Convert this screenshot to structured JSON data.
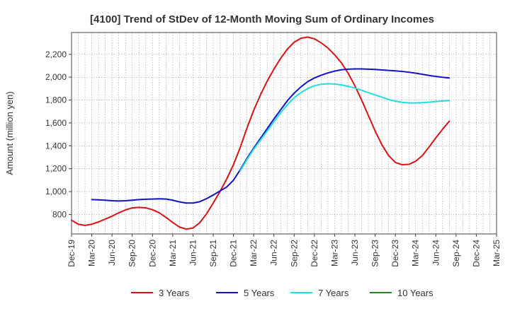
{
  "chart_data": {
    "type": "line",
    "title": "[4100]  Trend of StDev of 12-Month Moving Sum of Ordinary Incomes",
    "xlabel": "",
    "ylabel": "Amount (million yen)",
    "ylim": [
      630,
      2390
    ],
    "yticks": [
      800,
      1000,
      1200,
      1400,
      1600,
      1800,
      2000,
      2200
    ],
    "ytick_labels": [
      "800",
      "1,000",
      "1,200",
      "1,400",
      "1,600",
      "1,800",
      "2,000",
      "2,200"
    ],
    "x_tick_labels": [
      "Dec-19",
      "Mar-20",
      "Jun-20",
      "Sep-20",
      "Dec-20",
      "Mar-21",
      "Jun-21",
      "Sep-21",
      "Dec-21",
      "Mar-22",
      "Jun-22",
      "Sep-22",
      "Dec-22",
      "Mar-23",
      "Jun-23",
      "Sep-23",
      "Dec-23",
      "Mar-24",
      "Jun-24",
      "Sep-24",
      "Dec-24",
      "Mar-25"
    ],
    "grid": true,
    "legend_position": "bottom",
    "series": [
      {
        "name": "3 Years",
        "color": "#dd1111",
        "points": [
          [
            0,
            750
          ],
          [
            1,
            715
          ],
          [
            2,
            705
          ],
          [
            3,
            715
          ],
          [
            4,
            735
          ],
          [
            5,
            760
          ],
          [
            6,
            785
          ],
          [
            7,
            815
          ],
          [
            8,
            840
          ],
          [
            9,
            858
          ],
          [
            10,
            862
          ],
          [
            11,
            858
          ],
          [
            12,
            842
          ],
          [
            13,
            815
          ],
          [
            14,
            775
          ],
          [
            15,
            730
          ],
          [
            16,
            690
          ],
          [
            17,
            672
          ],
          [
            18,
            682
          ],
          [
            19,
            728
          ],
          [
            20,
            805
          ],
          [
            21,
            900
          ],
          [
            22,
            1000
          ],
          [
            23,
            1110
          ],
          [
            24,
            1235
          ],
          [
            25,
            1385
          ],
          [
            26,
            1555
          ],
          [
            27,
            1710
          ],
          [
            28,
            1845
          ],
          [
            29,
            1965
          ],
          [
            30,
            2070
          ],
          [
            31,
            2165
          ],
          [
            32,
            2245
          ],
          [
            33,
            2305
          ],
          [
            34,
            2340
          ],
          [
            35,
            2350
          ],
          [
            36,
            2335
          ],
          [
            37,
            2300
          ],
          [
            38,
            2255
          ],
          [
            39,
            2195
          ],
          [
            40,
            2125
          ],
          [
            41,
            2035
          ],
          [
            42,
            1925
          ],
          [
            43,
            1800
          ],
          [
            44,
            1665
          ],
          [
            45,
            1530
          ],
          [
            46,
            1410
          ],
          [
            47,
            1315
          ],
          [
            48,
            1255
          ],
          [
            49,
            1235
          ],
          [
            50,
            1238
          ],
          [
            51,
            1265
          ],
          [
            52,
            1315
          ],
          [
            53,
            1390
          ],
          [
            54,
            1470
          ],
          [
            55,
            1545
          ],
          [
            56,
            1615
          ]
        ]
      },
      {
        "name": "5 Years",
        "color": "#1111cc",
        "points": [
          [
            3,
            930
          ],
          [
            4,
            928
          ],
          [
            5,
            925
          ],
          [
            6,
            920
          ],
          [
            7,
            918
          ],
          [
            8,
            920
          ],
          [
            9,
            925
          ],
          [
            10,
            930
          ],
          [
            11,
            933
          ],
          [
            12,
            935
          ],
          [
            13,
            937
          ],
          [
            14,
            935
          ],
          [
            15,
            925
          ],
          [
            16,
            910
          ],
          [
            17,
            900
          ],
          [
            18,
            900
          ],
          [
            19,
            912
          ],
          [
            20,
            938
          ],
          [
            21,
            970
          ],
          [
            22,
            1005
          ],
          [
            23,
            1040
          ],
          [
            24,
            1100
          ],
          [
            25,
            1190
          ],
          [
            26,
            1290
          ],
          [
            27,
            1380
          ],
          [
            28,
            1465
          ],
          [
            29,
            1550
          ],
          [
            30,
            1635
          ],
          [
            31,
            1715
          ],
          [
            32,
            1795
          ],
          [
            33,
            1860
          ],
          [
            34,
            1915
          ],
          [
            35,
            1960
          ],
          [
            36,
            1993
          ],
          [
            37,
            2017
          ],
          [
            38,
            2037
          ],
          [
            39,
            2053
          ],
          [
            40,
            2064
          ],
          [
            41,
            2070
          ],
          [
            42,
            2072
          ],
          [
            43,
            2072
          ],
          [
            44,
            2070
          ],
          [
            45,
            2067
          ],
          [
            46,
            2063
          ],
          [
            47,
            2059
          ],
          [
            48,
            2055
          ],
          [
            49,
            2050
          ],
          [
            50,
            2043
          ],
          [
            51,
            2035
          ],
          [
            52,
            2025
          ],
          [
            53,
            2015
          ],
          [
            54,
            2006
          ],
          [
            55,
            1999
          ],
          [
            56,
            1993
          ]
        ]
      },
      {
        "name": "7 Years",
        "color": "#22dddd",
        "points": [
          [
            25,
            1180
          ],
          [
            26,
            1280
          ],
          [
            27,
            1370
          ],
          [
            28,
            1450
          ],
          [
            29,
            1530
          ],
          [
            30,
            1610
          ],
          [
            31,
            1690
          ],
          [
            32,
            1760
          ],
          [
            33,
            1820
          ],
          [
            34,
            1865
          ],
          [
            35,
            1900
          ],
          [
            36,
            1925
          ],
          [
            37,
            1938
          ],
          [
            38,
            1942
          ],
          [
            39,
            1940
          ],
          [
            40,
            1932
          ],
          [
            41,
            1920
          ],
          [
            42,
            1905
          ],
          [
            43,
            1885
          ],
          [
            44,
            1865
          ],
          [
            45,
            1845
          ],
          [
            46,
            1825
          ],
          [
            47,
            1805
          ],
          [
            48,
            1790
          ],
          [
            49,
            1780
          ],
          [
            50,
            1775
          ],
          [
            51,
            1775
          ],
          [
            52,
            1777
          ],
          [
            53,
            1782
          ],
          [
            54,
            1787
          ],
          [
            55,
            1792
          ],
          [
            56,
            1795
          ]
        ]
      },
      {
        "name": "10 Years",
        "color": "#228822",
        "points": []
      }
    ]
  }
}
